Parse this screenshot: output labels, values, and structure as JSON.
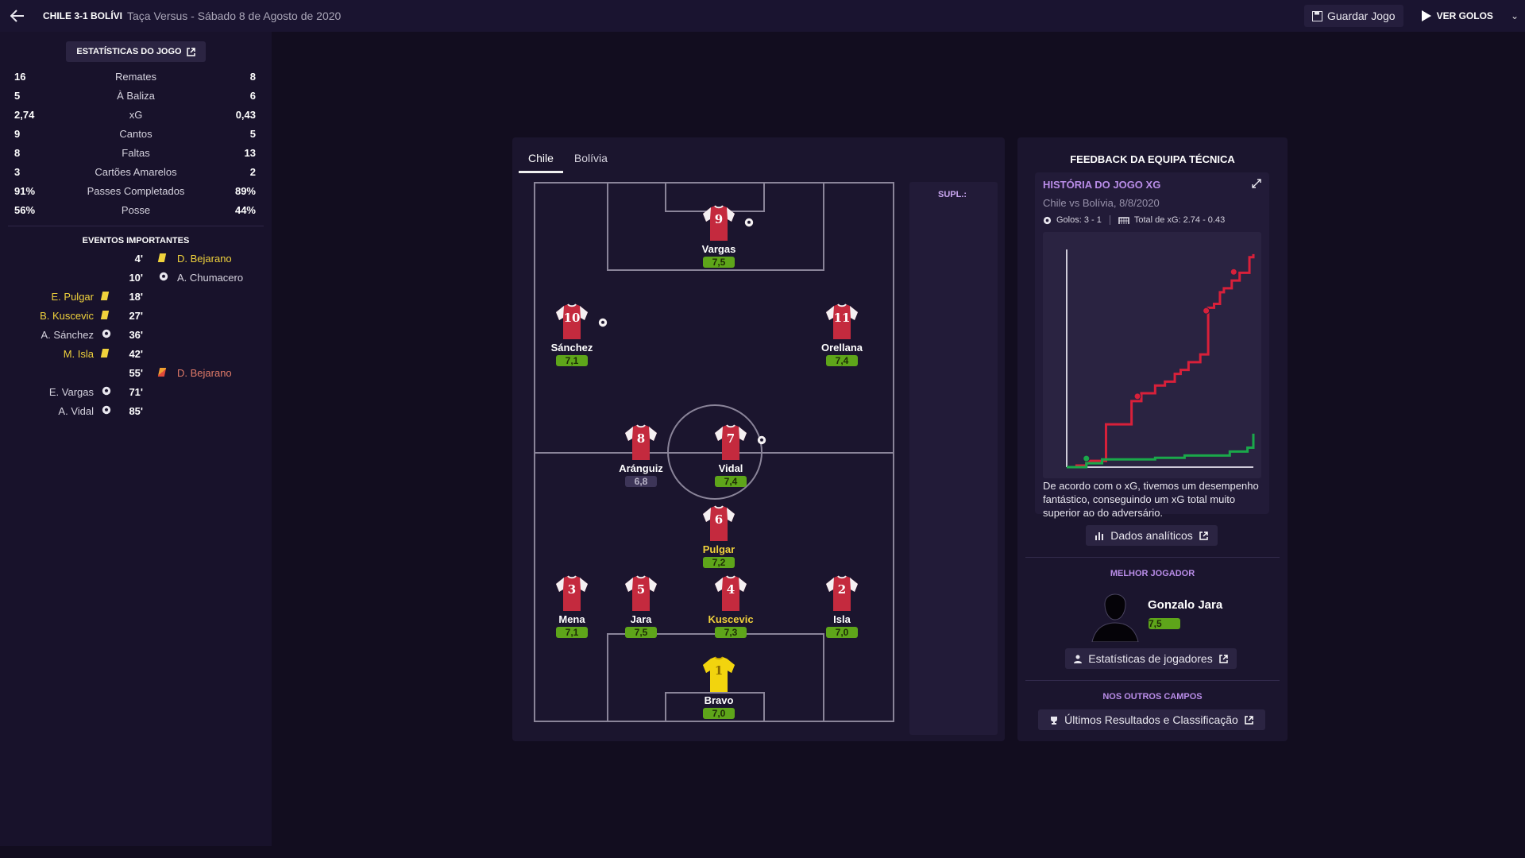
{
  "header": {
    "title": "CHILE 3-1 BOLÍVI",
    "subtitle": "Taça Versus - Sábado 8 de Agosto de 2020",
    "save_label": "Guardar Jogo",
    "goals_label": "VER GOLOS"
  },
  "stats": {
    "header_label": "ESTATÍSTICAS DO JOGO",
    "rows": [
      {
        "home": "16",
        "name": "Remates",
        "away": "8"
      },
      {
        "home": "5",
        "name": "À Baliza",
        "away": "6"
      },
      {
        "home": "2,74",
        "name": "xG",
        "away": "0,43"
      },
      {
        "home": "9",
        "name": "Cantos",
        "away": "5"
      },
      {
        "home": "8",
        "name": "Faltas",
        "away": "13"
      },
      {
        "home": "3",
        "name": "Cartões Amarelos",
        "away": "2"
      },
      {
        "home": "91%",
        "name": "Passes Completados",
        "away": "89%"
      },
      {
        "home": "56%",
        "name": "Posse",
        "away": "44%"
      }
    ]
  },
  "events": {
    "title": "EVENTOS IMPORTANTES",
    "rows": [
      {
        "minute": "4'",
        "home": "",
        "home_icon": "",
        "away": "D. Bejarano",
        "away_icon": "yellow-card",
        "away_color": "yellow"
      },
      {
        "minute": "10'",
        "home": "",
        "home_icon": "",
        "away": "A. Chumacero",
        "away_icon": "goal",
        "away_color": "white"
      },
      {
        "minute": "18'",
        "home": "E. Pulgar",
        "home_icon": "yellow-card",
        "home_color": "yellow",
        "away": "",
        "away_icon": ""
      },
      {
        "minute": "27'",
        "home": "B. Kuscevic",
        "home_icon": "yellow-card",
        "home_color": "yellow",
        "away": "",
        "away_icon": ""
      },
      {
        "minute": "36'",
        "home": "A. Sánchez",
        "home_icon": "goal",
        "home_color": "white",
        "away": "",
        "away_icon": ""
      },
      {
        "minute": "42'",
        "home": "M. Isla",
        "home_icon": "yellow-card",
        "home_color": "yellow",
        "away": "",
        "away_icon": ""
      },
      {
        "minute": "55'",
        "home": "",
        "home_icon": "",
        "away": "D. Bejarano",
        "away_icon": "second-yellow-card",
        "away_color": "red"
      },
      {
        "minute": "71'",
        "home": "E. Vargas",
        "home_icon": "goal",
        "home_color": "white",
        "away": "",
        "away_icon": ""
      },
      {
        "minute": "85'",
        "home": "A. Vidal",
        "home_icon": "goal",
        "home_color": "white",
        "away": "",
        "away_icon": ""
      }
    ]
  },
  "tactics": {
    "tabs": [
      {
        "label": "Chile",
        "active": true
      },
      {
        "label": "Bolívia",
        "active": false
      }
    ],
    "subs_label": "SUPL.:",
    "players": [
      {
        "num": "9",
        "name": "Vargas",
        "rating": "7,5",
        "goal": true,
        "gk": false,
        "highlight": false,
        "good": true
      },
      {
        "num": "10",
        "name": "Sánchez",
        "rating": "7,1",
        "goal": true,
        "gk": false,
        "highlight": false,
        "good": true
      },
      {
        "num": "11",
        "name": "Orellana",
        "rating": "7,4",
        "goal": false,
        "gk": false,
        "highlight": false,
        "good": true
      },
      {
        "num": "8",
        "name": "Aránguiz",
        "rating": "6,8",
        "goal": false,
        "gk": false,
        "highlight": false,
        "good": false
      },
      {
        "num": "7",
        "name": "Vidal",
        "rating": "7,4",
        "goal": true,
        "gk": false,
        "highlight": false,
        "good": true
      },
      {
        "num": "6",
        "name": "Pulgar",
        "rating": "7,2",
        "goal": false,
        "gk": false,
        "highlight": true,
        "good": true
      },
      {
        "num": "3",
        "name": "Mena",
        "rating": "7,1",
        "goal": false,
        "gk": false,
        "highlight": false,
        "good": true
      },
      {
        "num": "5",
        "name": "Jara",
        "rating": "7,5",
        "goal": false,
        "gk": false,
        "highlight": false,
        "good": true
      },
      {
        "num": "4",
        "name": "Kuscevic",
        "rating": "7,3",
        "goal": false,
        "gk": false,
        "highlight": true,
        "good": true
      },
      {
        "num": "2",
        "name": "Isla",
        "rating": "7,0",
        "goal": false,
        "gk": false,
        "highlight": false,
        "good": true
      },
      {
        "num": "1",
        "name": "Bravo",
        "rating": "7,0",
        "goal": false,
        "gk": true,
        "highlight": false,
        "good": true
      }
    ]
  },
  "feedback": {
    "title": "FEEDBACK DA EQUIPA TÉCNICA",
    "xg_title": "HISTÓRIA DO JOGO XG",
    "xg_subtitle": "Chile vs Bolívia, 8/8/2020",
    "goals_label": "Golos: 3 - 1",
    "xg_total_label": "Total de xG: 2.74 - 0.43",
    "xg_text": "De acordo com o xG, tivemos um desempenho fantástico, conseguindo um xG total muito superior ao do adversário.",
    "analytics_label": "Dados analíticos",
    "best_player_label": "MELHOR JOGADOR",
    "best_player_name": "Gonzalo Jara",
    "best_player_rating": "7,5",
    "player_stats_label": "Estatísticas de jogadores",
    "other_fields_label": "NOS OUTROS CAMPOS",
    "results_label": "Últimos Resultados e Classificação",
    "colors": {
      "home": "#d8203a",
      "away": "#1aa84a"
    }
  },
  "chart_data": {
    "type": "line",
    "series": [
      {
        "values": [
          [
            0,
            0
          ],
          [
            5,
            0.02
          ],
          [
            10,
            0.08
          ],
          [
            20,
            0.55
          ],
          [
            30,
            0.55
          ],
          [
            33,
            0.85
          ],
          [
            38,
            0.95
          ],
          [
            45,
            1.05
          ],
          [
            50,
            1.1
          ],
          [
            55,
            1.2
          ],
          [
            58,
            1.25
          ],
          [
            62,
            1.35
          ],
          [
            68,
            1.45
          ],
          [
            72,
            2.05
          ],
          [
            75,
            2.1
          ],
          [
            78,
            2.25
          ],
          [
            80,
            2.3
          ],
          [
            84,
            2.4
          ],
          [
            88,
            2.5
          ],
          [
            93,
            2.7
          ],
          [
            95,
            2.74
          ]
        ]
      },
      {
        "values": [
          [
            0,
            0
          ],
          [
            10,
            0.05
          ],
          [
            18,
            0.1
          ],
          [
            30,
            0.1
          ],
          [
            45,
            0.12
          ],
          [
            60,
            0.15
          ],
          [
            78,
            0.15
          ],
          [
            83,
            0.2
          ],
          [
            92,
            0.25
          ],
          [
            95,
            0.43
          ]
        ]
      }
    ],
    "goals_home": [
      [
        36,
        0.85
      ],
      [
        71,
        1.95
      ],
      [
        85,
        2.45
      ]
    ],
    "goals_away": [
      [
        10,
        0.05
      ]
    ],
    "xlim": [
      0,
      95
    ],
    "ylim": [
      0,
      2.8
    ]
  }
}
